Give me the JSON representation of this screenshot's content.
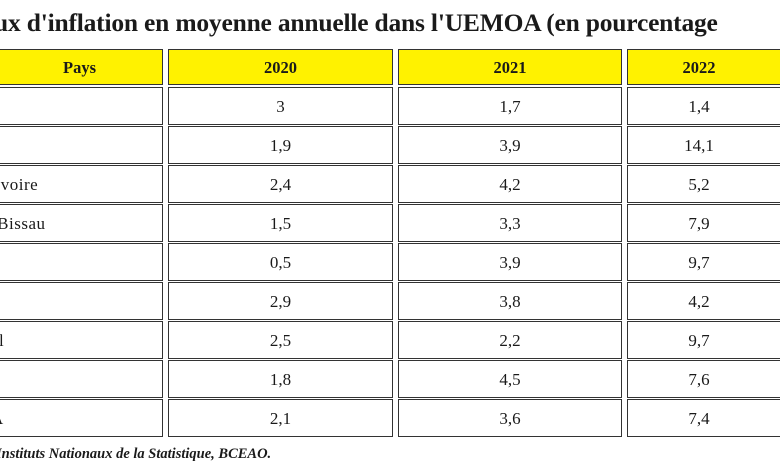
{
  "title": "ux d'inflation en moyenne annuelle dans l'UEMOA (en pourcentage",
  "table": {
    "headers": [
      "Pays",
      "2020",
      "2021",
      "2022"
    ],
    "rows": [
      [
        "",
        "3",
        "1,7",
        "1,4"
      ],
      [
        "a",
        "1,9",
        "3,9",
        "14,1"
      ],
      [
        "'Ivoire",
        "2,4",
        "4,2",
        "5,2"
      ],
      [
        "-Bissau",
        "1,5",
        "3,3",
        "7,9"
      ],
      [
        "",
        "0,5",
        "3,9",
        "9,7"
      ],
      [
        "",
        "2,9",
        "3,8",
        "4,2"
      ],
      [
        "al",
        "2,5",
        "2,2",
        "9,7"
      ],
      [
        "",
        "1,8",
        "4,5",
        "7,6"
      ],
      [
        "A",
        "2,1",
        "3,6",
        "7,4"
      ]
    ]
  },
  "footer": "Instituts Nationaux de la Statistique, BCEAO."
}
